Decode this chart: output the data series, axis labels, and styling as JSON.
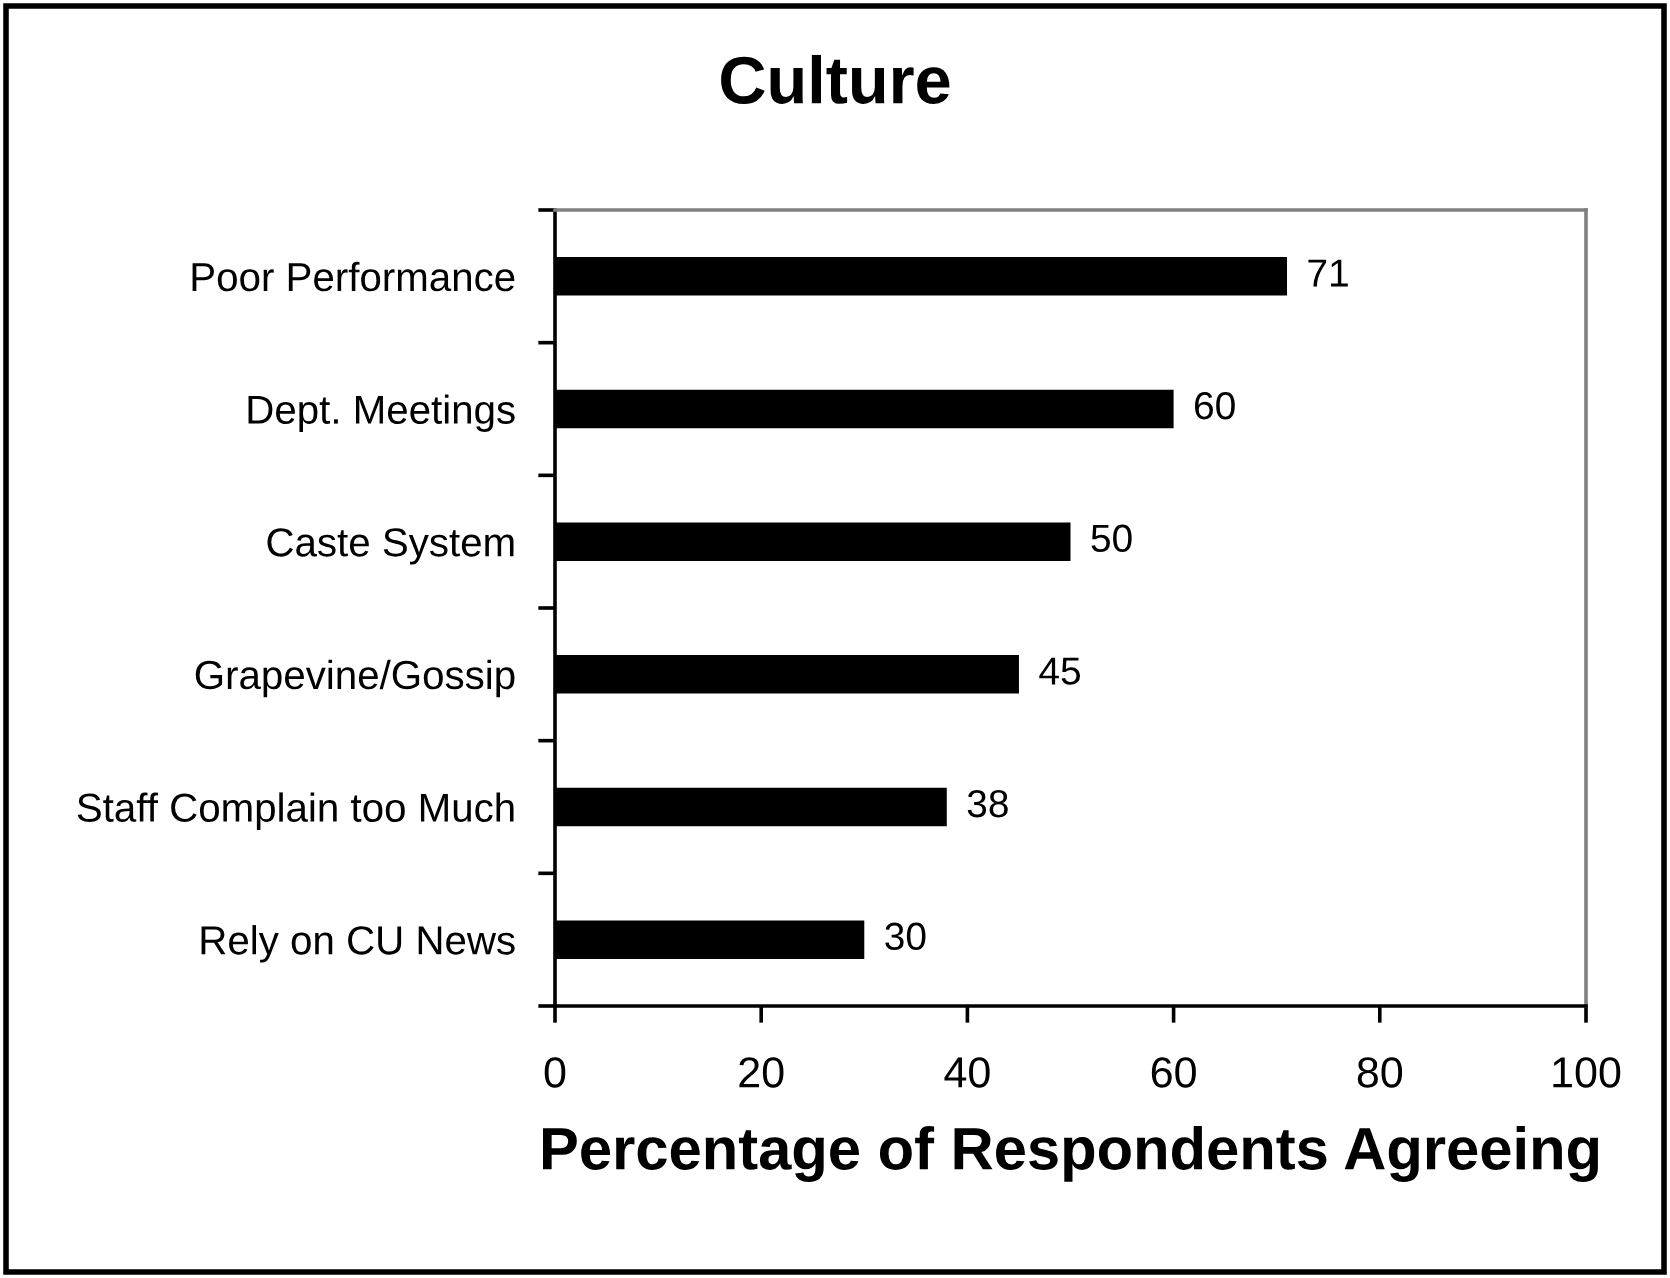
{
  "chart_data": {
    "type": "bar",
    "orientation": "horizontal",
    "title": "Culture",
    "xlabel": "Percentage of Respondents Agreeing",
    "categories": [
      "Poor Performance",
      "Dept. Meetings",
      "Caste System",
      "Grapevine/Gossip",
      "Staff Complain too Much",
      "Rely on CU News"
    ],
    "values": [
      71,
      60,
      50,
      45,
      38,
      30
    ],
    "color": "#000000",
    "xlim": [
      0,
      100
    ],
    "xticks": [
      0,
      20,
      40,
      60,
      80,
      100
    ],
    "grid": false,
    "data_labels": true
  }
}
